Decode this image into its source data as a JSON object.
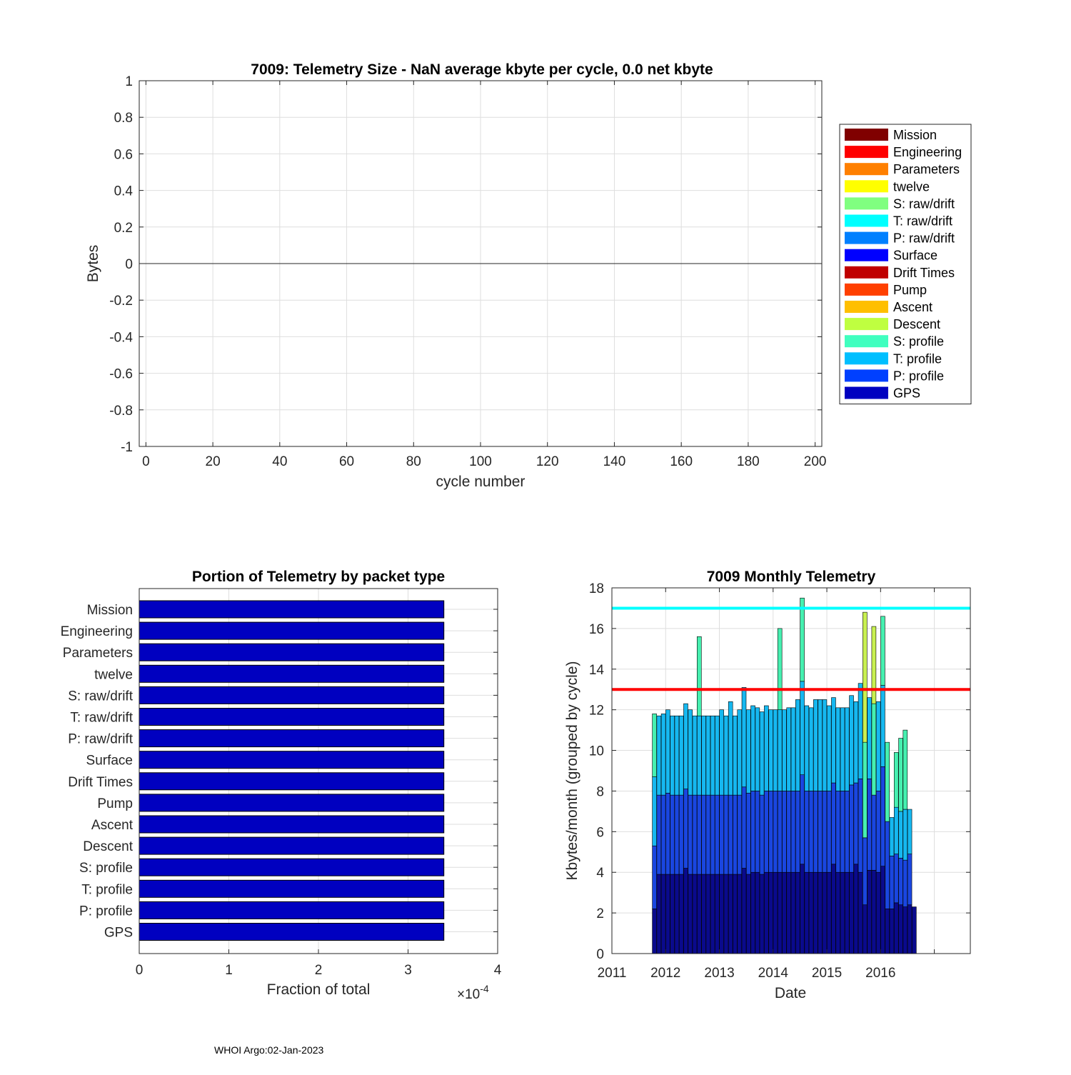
{
  "footer": "WHOI Argo:02-Jan-2023",
  "chart_data": [
    {
      "id": "telemetry_size",
      "type": "bar",
      "title": "7009: Telemetry Size -  NaN average kbyte per cycle,    0.0 net kbyte",
      "xlabel": "cycle number",
      "ylabel": "Bytes",
      "xlim": [
        -2,
        202
      ],
      "ylim": [
        -1,
        1
      ],
      "xticks": [
        0,
        20,
        40,
        60,
        80,
        100,
        120,
        140,
        160,
        180,
        200
      ],
      "yticks": [
        1,
        0.8,
        0.6,
        0.4,
        0.2,
        0,
        -0.2,
        -0.4,
        -0.6,
        -0.8,
        -1
      ],
      "ytick_labels": [
        "1",
        "0.8",
        "0.6",
        "0.4",
        "0.2",
        "0",
        "-0.2",
        "-0.4",
        "-0.6",
        "-0.8",
        "-1"
      ],
      "grid": true,
      "legend_position": "outside-right",
      "series": [
        {
          "name": "Mission",
          "color": "#800000",
          "values": []
        },
        {
          "name": "Engineering",
          "color": "#ff0000",
          "values": []
        },
        {
          "name": "Parameters",
          "color": "#ff8000",
          "values": []
        },
        {
          "name": "twelve",
          "color": "#ffff00",
          "values": []
        },
        {
          "name": "S: raw/drift",
          "color": "#80ff80",
          "values": []
        },
        {
          "name": "T: raw/drift",
          "color": "#00ffff",
          "values": []
        },
        {
          "name": "P: raw/drift",
          "color": "#0080ff",
          "values": []
        },
        {
          "name": "Surface",
          "color": "#0000ff",
          "values": []
        },
        {
          "name": "Drift Times",
          "color": "#c00000",
          "values": []
        },
        {
          "name": "Pump",
          "color": "#ff4000",
          "values": []
        },
        {
          "name": "Ascent",
          "color": "#ffbf00",
          "values": []
        },
        {
          "name": "Descent",
          "color": "#bfff40",
          "values": []
        },
        {
          "name": "S: profile",
          "color": "#40ffbf",
          "values": []
        },
        {
          "name": "T: profile",
          "color": "#00bfff",
          "values": []
        },
        {
          "name": "P: profile",
          "color": "#0040ff",
          "values": []
        },
        {
          "name": "GPS",
          "color": "#0000c0",
          "values": []
        }
      ]
    },
    {
      "id": "portion_by_packet",
      "type": "bar",
      "orientation": "horizontal",
      "title": "Portion of Telemetry by packet type",
      "xlabel": "Fraction of total",
      "x_exponent_label": "×10",
      "x_exponent": "-4",
      "xlim": [
        0,
        4
      ],
      "xticks": [
        0,
        1,
        2,
        3,
        4
      ],
      "bar_color": "#0000c0",
      "categories": [
        "Mission",
        "Engineering",
        "Parameters",
        "twelve",
        "S: raw/drift",
        "T: raw/drift",
        "P: raw/drift",
        "Surface",
        "Drift Times",
        "Pump",
        "Ascent",
        "Descent",
        "S: profile",
        "T: profile",
        "P: profile",
        "GPS"
      ],
      "values": [
        3.4,
        3.4,
        3.4,
        3.4,
        3.4,
        3.4,
        3.4,
        3.4,
        3.4,
        3.4,
        3.4,
        3.4,
        3.4,
        3.4,
        3.4,
        3.4
      ],
      "grid": true
    },
    {
      "id": "monthly_telemetry",
      "type": "bar",
      "stacked": true,
      "title": "7009 Monthly Telemetry",
      "xlabel": "Date",
      "ylabel": "Kbytes/month (grouped by cycle)",
      "xlim": [
        2011,
        2017.67
      ],
      "ylim": [
        0,
        18
      ],
      "xticks": [
        2011,
        2012,
        2013,
        2014,
        2015,
        2016,
        2017
      ],
      "xtick_labels": [
        "2011",
        "2012",
        "2013",
        "2014",
        "2015",
        "2016",
        ""
      ],
      "yticks": [
        0,
        2,
        4,
        6,
        8,
        10,
        12,
        14,
        16,
        18
      ],
      "grid": true,
      "reference_lines": [
        {
          "value": 17.0,
          "color": "#00ffff"
        },
        {
          "value": 13.0,
          "color": "#ff0000"
        }
      ],
      "stack_series": [
        {
          "name": "GPS",
          "color": "#0a0a8c"
        },
        {
          "name": "P: profile",
          "color": "#1a46e0"
        },
        {
          "name": "T: profile",
          "color": "#16b8f0"
        },
        {
          "name": "S: profile",
          "color": "#46f0b0"
        },
        {
          "name": "Descent",
          "color": "#c8f050"
        }
      ],
      "bars": [
        {
          "date": "2011-10",
          "values": [
            2.2,
            3.1,
            3.4,
            3.1,
            0
          ]
        },
        {
          "date": "2011-11",
          "values": [
            3.9,
            3.9,
            3.9,
            0,
            0
          ]
        },
        {
          "date": "2011-12",
          "values": [
            3.9,
            3.9,
            4.0,
            0,
            0
          ]
        },
        {
          "date": "2012-01",
          "values": [
            3.9,
            4.0,
            4.1,
            0,
            0
          ]
        },
        {
          "date": "2012-02",
          "values": [
            3.9,
            3.9,
            3.9,
            0,
            0
          ]
        },
        {
          "date": "2012-03",
          "values": [
            3.9,
            3.9,
            3.9,
            0,
            0
          ]
        },
        {
          "date": "2012-04",
          "values": [
            3.9,
            3.9,
            3.9,
            0,
            0
          ]
        },
        {
          "date": "2012-05",
          "values": [
            4.2,
            3.9,
            4.2,
            0,
            0
          ]
        },
        {
          "date": "2012-06",
          "values": [
            3.9,
            3.9,
            4.2,
            0,
            0
          ]
        },
        {
          "date": "2012-07",
          "values": [
            3.9,
            3.9,
            3.9,
            0,
            0
          ]
        },
        {
          "date": "2012-08",
          "values": [
            3.9,
            3.9,
            3.9,
            3.9,
            0
          ]
        },
        {
          "date": "2012-09",
          "values": [
            3.9,
            3.9,
            3.9,
            0,
            0
          ]
        },
        {
          "date": "2012-10",
          "values": [
            3.9,
            3.9,
            3.9,
            0,
            0
          ]
        },
        {
          "date": "2012-11",
          "values": [
            3.9,
            3.9,
            3.9,
            0,
            0
          ]
        },
        {
          "date": "2012-12",
          "values": [
            3.9,
            3.9,
            3.9,
            0,
            0
          ]
        },
        {
          "date": "2013-01",
          "values": [
            3.9,
            3.9,
            4.2,
            0,
            0
          ]
        },
        {
          "date": "2013-02",
          "values": [
            3.9,
            3.9,
            3.9,
            0,
            0
          ]
        },
        {
          "date": "2013-03",
          "values": [
            3.9,
            3.9,
            4.6,
            0,
            0
          ]
        },
        {
          "date": "2013-04",
          "values": [
            3.9,
            3.9,
            3.9,
            0,
            0
          ]
        },
        {
          "date": "2013-05",
          "values": [
            3.9,
            3.9,
            4.2,
            0,
            0
          ]
        },
        {
          "date": "2013-06",
          "values": [
            4.2,
            4.0,
            4.9,
            0,
            0
          ]
        },
        {
          "date": "2013-07",
          "values": [
            3.9,
            4.0,
            4.1,
            0,
            0
          ]
        },
        {
          "date": "2013-08",
          "values": [
            4.0,
            4.0,
            4.2,
            0,
            0
          ]
        },
        {
          "date": "2013-09",
          "values": [
            4.0,
            4.0,
            4.1,
            0,
            0
          ]
        },
        {
          "date": "2013-10",
          "values": [
            3.9,
            3.9,
            4.1,
            0,
            0
          ]
        },
        {
          "date": "2013-11",
          "values": [
            4.0,
            4.0,
            4.2,
            0,
            0
          ]
        },
        {
          "date": "2013-12",
          "values": [
            4.0,
            4.0,
            4.0,
            0,
            0
          ]
        },
        {
          "date": "2014-01",
          "values": [
            4.0,
            4.0,
            4.0,
            0,
            0
          ]
        },
        {
          "date": "2014-02",
          "values": [
            4.0,
            4.0,
            4.0,
            4.0,
            0
          ]
        },
        {
          "date": "2014-03",
          "values": [
            4.0,
            4.0,
            4.0,
            0,
            0
          ]
        },
        {
          "date": "2014-04",
          "values": [
            4.0,
            4.0,
            4.1,
            0,
            0
          ]
        },
        {
          "date": "2014-05",
          "values": [
            4.0,
            4.0,
            4.1,
            0,
            0
          ]
        },
        {
          "date": "2014-06",
          "values": [
            4.0,
            4.0,
            4.5,
            0,
            0
          ]
        },
        {
          "date": "2014-07",
          "values": [
            4.4,
            4.4,
            4.6,
            4.1,
            0
          ]
        },
        {
          "date": "2014-08",
          "values": [
            4.0,
            4.0,
            4.2,
            0,
            0
          ]
        },
        {
          "date": "2014-09",
          "values": [
            4.0,
            4.0,
            4.1,
            0,
            0
          ]
        },
        {
          "date": "2014-10",
          "values": [
            4.0,
            4.0,
            4.5,
            0,
            0
          ]
        },
        {
          "date": "2014-11",
          "values": [
            4.0,
            4.0,
            4.5,
            0,
            0
          ]
        },
        {
          "date": "2014-12",
          "values": [
            4.0,
            4.0,
            4.5,
            0,
            0
          ]
        },
        {
          "date": "2015-01",
          "values": [
            4.0,
            4.0,
            4.2,
            0,
            0
          ]
        },
        {
          "date": "2015-02",
          "values": [
            4.4,
            4.0,
            4.2,
            0,
            0
          ]
        },
        {
          "date": "2015-03",
          "values": [
            4.0,
            4.0,
            4.1,
            0,
            0
          ]
        },
        {
          "date": "2015-04",
          "values": [
            4.0,
            4.0,
            4.1,
            0,
            0
          ]
        },
        {
          "date": "2015-05",
          "values": [
            4.0,
            4.0,
            4.1,
            0,
            0
          ]
        },
        {
          "date": "2015-06",
          "values": [
            4.0,
            4.3,
            4.4,
            0,
            0
          ]
        },
        {
          "date": "2015-07",
          "values": [
            4.4,
            4.0,
            4.0,
            0,
            0
          ]
        },
        {
          "date": "2015-08",
          "values": [
            4.0,
            4.6,
            4.7,
            0,
            0
          ]
        },
        {
          "date": "2015-09",
          "values": [
            2.4,
            3.3,
            0,
            4.7,
            6.4
          ]
        },
        {
          "date": "2015-10",
          "values": [
            4.1,
            4.5,
            4.0,
            0,
            0
          ]
        },
        {
          "date": "2015-11",
          "values": [
            4.1,
            3.7,
            0,
            4.5,
            3.8
          ]
        },
        {
          "date": "2015-12",
          "values": [
            4.0,
            4.0,
            4.4,
            0,
            0
          ]
        },
        {
          "date": "2016-01",
          "values": [
            4.3,
            4.9,
            4.0,
            3.4,
            0
          ]
        },
        {
          "date": "2016-02",
          "values": [
            2.2,
            4.3,
            0,
            3.9,
            0
          ]
        },
        {
          "date": "2016-03",
          "values": [
            2.2,
            2.6,
            1.9,
            0,
            0
          ]
        },
        {
          "date": "2016-04",
          "values": [
            2.5,
            2.4,
            2.3,
            2.7,
            0
          ]
        },
        {
          "date": "2016-05",
          "values": [
            2.4,
            2.3,
            2.3,
            3.6,
            0
          ]
        },
        {
          "date": "2016-06",
          "values": [
            2.3,
            2.3,
            2.5,
            3.9,
            0
          ]
        },
        {
          "date": "2016-07",
          "values": [
            2.4,
            2.5,
            2.2,
            0,
            0
          ]
        },
        {
          "date": "2016-08",
          "values": [
            2.3,
            0,
            0,
            0,
            0
          ]
        }
      ]
    }
  ]
}
